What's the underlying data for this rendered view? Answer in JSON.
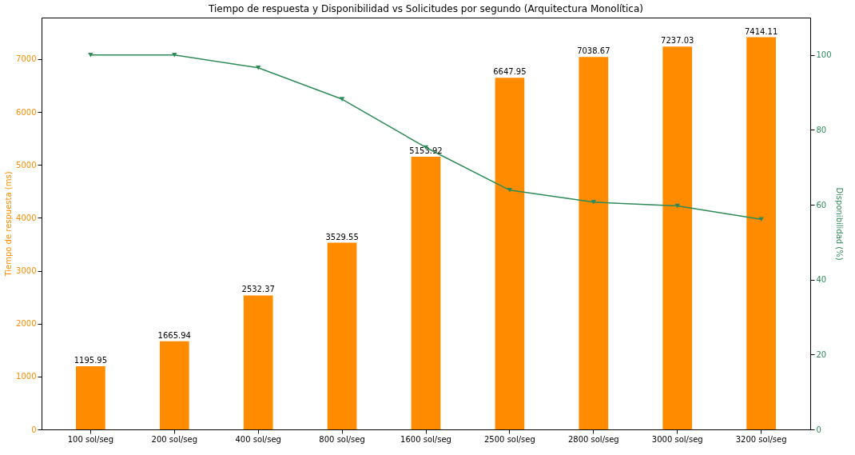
{
  "chart_data": {
    "type": "bar",
    "title": "Tiempo de respuesta y Disponibilidad vs Solicitudes por segundo (Arquitectura Monolítica)",
    "ylabel": "Tiempo de respuesta (ms)",
    "y2label": "Disponibilidad (%)",
    "categories": [
      "100 sol/seg",
      "200 sol/seg",
      "400 sol/seg",
      "800 sol/seg",
      "1600 sol/seg",
      "2500 sol/seg",
      "2800 sol/seg",
      "3000 sol/seg",
      "3200 sol/seg"
    ],
    "series": [
      {
        "color": "#ff8c00",
        "values": [
          1195.95,
          1665.94,
          2532.37,
          3529.55,
          5153.92,
          6647.95,
          7038.67,
          7237.03,
          7414.11
        ],
        "data_labels": true
      },
      {
        "type": "line",
        "axis": "y2",
        "color": "#2e8b57",
        "marker": "triangle",
        "values": [
          100,
          100,
          96.6,
          88.2,
          75.3,
          63.9,
          60.7,
          59.7,
          56.1
        ]
      }
    ],
    "ylim": [
      0,
      7785
    ],
    "yticks": [
      0,
      1000,
      2000,
      3000,
      4000,
      5000,
      6000,
      7000
    ],
    "y2lim": [
      0,
      110
    ],
    "y2ticks": [
      0,
      20,
      40,
      60,
      80,
      100
    ],
    "grid": false,
    "legend": false
  }
}
